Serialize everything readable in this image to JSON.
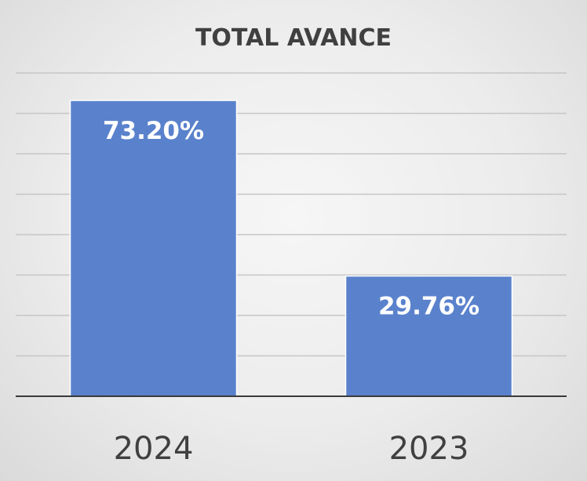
{
  "chart_data": {
    "type": "bar",
    "title": "TOTAL  AVANCE",
    "categories": [
      "2024",
      "2023"
    ],
    "values": [
      73.2,
      29.76
    ],
    "data_labels": [
      "73.20%",
      "29.76%"
    ],
    "ylim": [
      0,
      80
    ],
    "y_gridline_step": 10,
    "grid": true,
    "legend": "none",
    "colors": {
      "bar": "#5a82cc",
      "gridline": "#c6c6c6",
      "text": "#404040"
    }
  }
}
